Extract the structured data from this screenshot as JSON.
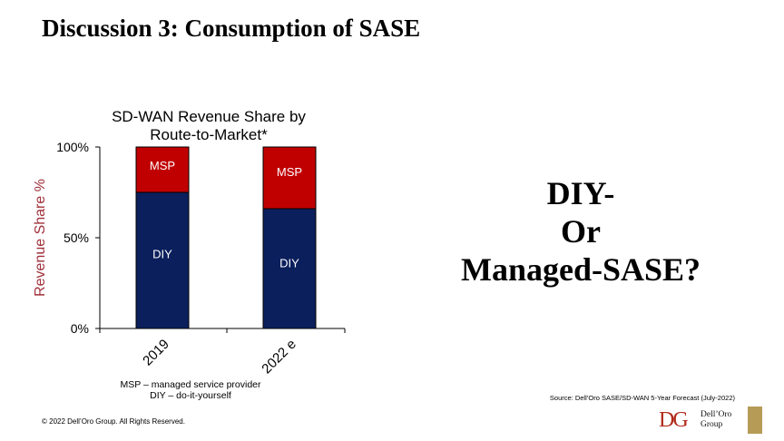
{
  "slide": {
    "title": "Discussion 3: Consumption of SASE",
    "question_lines": [
      "DIY-",
      "Or",
      "Managed-SASE?"
    ],
    "legend_lines": [
      "MSP – managed service provider",
      "DIY – do-it-yourself"
    ],
    "source": "Source: Dell’Oro SASE/SD-WAN 5-Year Forecast (July-2022)",
    "copyright": "© 2022 Dell’Oro Group. All Rights Reserved.",
    "logo": {
      "mark": "DG",
      "line1": "Dell’Oro",
      "line2": "Group"
    }
  },
  "colors": {
    "msp": "#c00000",
    "diy": "#0b1f5c",
    "ylabel": "#a0303a"
  },
  "chart_data": {
    "type": "bar",
    "stacked": true,
    "title_lines": [
      "SD-WAN Revenue Share by",
      "Route-to-Market*"
    ],
    "ylabel": "Revenue Share %",
    "xlabel": "",
    "categories": [
      "2019",
      "2022 e"
    ],
    "yticks": [
      "0%",
      "50%",
      "100%"
    ],
    "ylim": [
      0,
      100
    ],
    "grid": false,
    "series": [
      {
        "name": "DIY",
        "values": [
          75,
          66
        ]
      },
      {
        "name": "MSP",
        "values": [
          25,
          34
        ]
      }
    ]
  }
}
